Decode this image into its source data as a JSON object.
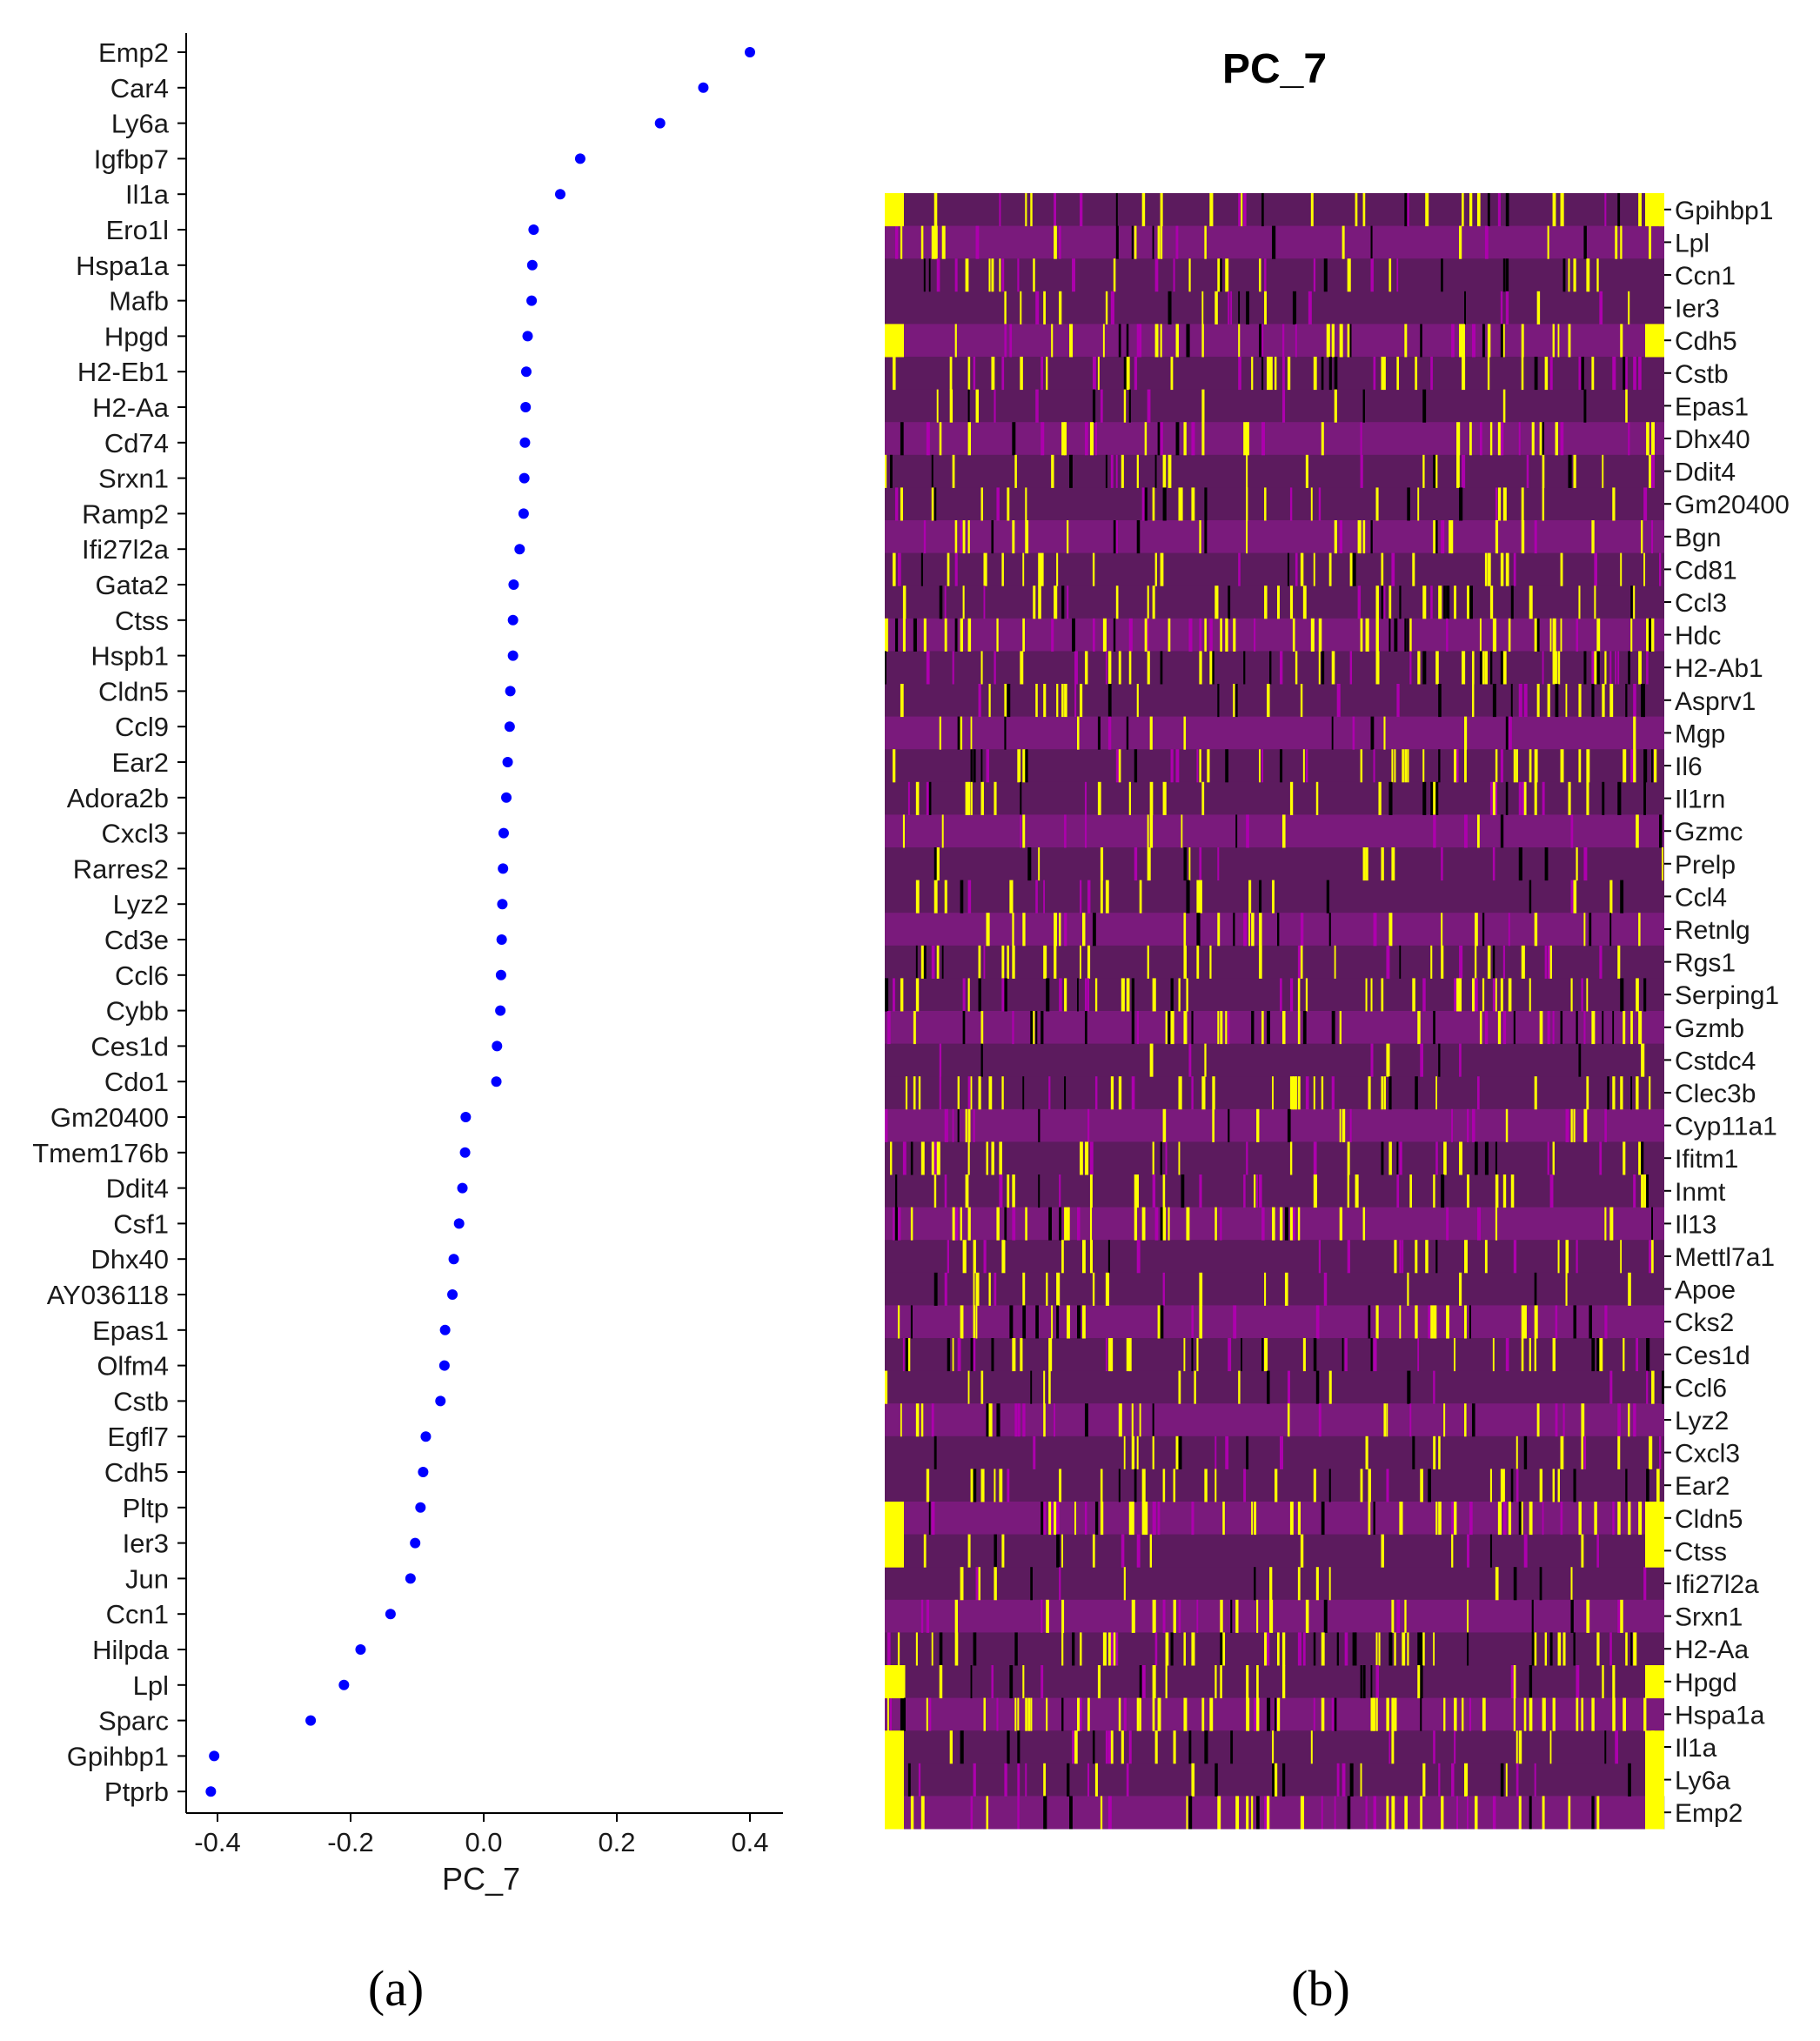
{
  "panel_labels": {
    "a": "(a)",
    "b": "(b)"
  },
  "colors": {
    "dot": "#0000ff",
    "heat_low": "#5c1b5e",
    "heat_mid": "#ad00ad",
    "heat_high": "#ffff00",
    "axis": "#000000"
  },
  "chart_data": [
    {
      "type": "scatter",
      "title": "",
      "xlabel": "PC_7",
      "ylabel": "",
      "xlim": [
        -0.45,
        0.45
      ],
      "xticks": [
        -0.4,
        -0.2,
        0.0,
        0.2,
        0.4
      ],
      "xtick_labels": [
        "-0.4",
        "-0.2",
        "0.0",
        "0.2",
        "0.4"
      ],
      "grid": false,
      "genes": [
        "Emp2",
        "Car4",
        "Ly6a",
        "Igfbp7",
        "Il1a",
        "Ero1l",
        "Hspa1a",
        "Mafb",
        "Hpgd",
        "H2-Eb1",
        "H2-Aa",
        "Cd74",
        "Srxn1",
        "Ramp2",
        "Ifi27l2a",
        "Gata2",
        "Ctss",
        "Hspb1",
        "Cldn5",
        "Ccl9",
        "Ear2",
        "Adora2b",
        "Cxcl3",
        "Rarres2",
        "Lyz2",
        "Cd3e",
        "Ccl6",
        "Cybb",
        "Ces1d",
        "Cdo1",
        "Gm20400",
        "Tmem176b",
        "Ddit4",
        "Csf1",
        "Dhx40",
        "AY036118",
        "Epas1",
        "Olfm4",
        "Cstb",
        "Egfl7",
        "Cdh5",
        "Pltp",
        "Ier3",
        "Jun",
        "Ccn1",
        "Hilpda",
        "Lpl",
        "Sparc",
        "Gpihbp1",
        "Ptprb"
      ],
      "values": [
        0.4,
        0.33,
        0.265,
        0.145,
        0.115,
        0.075,
        0.073,
        0.072,
        0.066,
        0.064,
        0.063,
        0.062,
        0.061,
        0.06,
        0.054,
        0.045,
        0.044,
        0.044,
        0.04,
        0.039,
        0.036,
        0.034,
        0.03,
        0.029,
        0.028,
        0.027,
        0.026,
        0.025,
        0.02,
        0.019,
        -0.027,
        -0.028,
        -0.032,
        -0.037,
        -0.045,
        -0.047,
        -0.058,
        -0.059,
        -0.065,
        -0.087,
        -0.091,
        -0.095,
        -0.103,
        -0.11,
        -0.14,
        -0.185,
        -0.21,
        -0.26,
        -0.405,
        -0.41
      ]
    },
    {
      "type": "heatmap",
      "title": "PC_7",
      "xlabel": "",
      "ylabel": "",
      "rows": [
        "Gpihbp1",
        "Lpl",
        "Ccn1",
        "Ier3",
        "Cdh5",
        "Cstb",
        "Epas1",
        "Dhx40",
        "Ddit4",
        "Gm20400",
        "Bgn",
        "Cd81",
        "Ccl3",
        "Hdc",
        "H2-Ab1",
        "Asprv1",
        "Mgp",
        "Il6",
        "Il1rn",
        "Gzmc",
        "Prelp",
        "Ccl4",
        "Retnlg",
        "Rgs1",
        "Serping1",
        "Gzmb",
        "Cstdc4",
        "Clec3b",
        "Cyp11a1",
        "Ifitm1",
        "Inmt",
        "Il13",
        "Mettl7a1",
        "Apoe",
        "Cks2",
        "Ces1d",
        "Ccl6",
        "Lyz2",
        "Cxcl3",
        "Ear2",
        "Cldn5",
        "Ctss",
        "Ifi27l2a",
        "Srxn1",
        "H2-Aa",
        "Hpgd",
        "Hspa1a",
        "Il1a",
        "Ly6a",
        "Emp2"
      ],
      "color_scale": [
        "#000000",
        "#5c1b5e",
        "#ad00ad",
        "#ffff00"
      ]
    }
  ]
}
